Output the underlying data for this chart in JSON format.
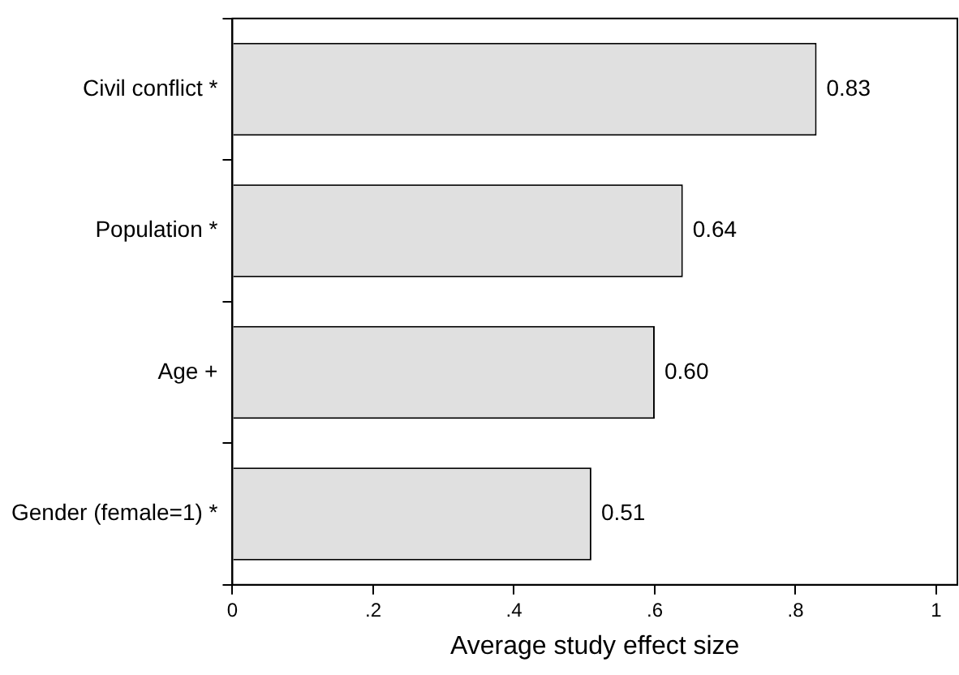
{
  "chart_data": {
    "type": "bar",
    "orientation": "horizontal",
    "xlabel": "Average study effect size",
    "categories": [
      "Civil conflict *",
      "Population *",
      "Age +",
      "Gender (female=1) *"
    ],
    "values": [
      0.83,
      0.64,
      0.6,
      0.51
    ],
    "value_labels": [
      "0.83",
      "0.64",
      "0.60",
      "0.51"
    ],
    "color": "#e0e0e0",
    "xlim": [
      0,
      1.03
    ],
    "xticks": [
      0,
      {
        "value": 0.2,
        "label": ".2"
      },
      {
        "value": 0.4,
        "label": ".4"
      },
      {
        "value": 0.6,
        "label": ".6"
      },
      {
        "value": 0.8,
        "label": ".8"
      },
      1
    ],
    "grid": false,
    "legend": false
  }
}
